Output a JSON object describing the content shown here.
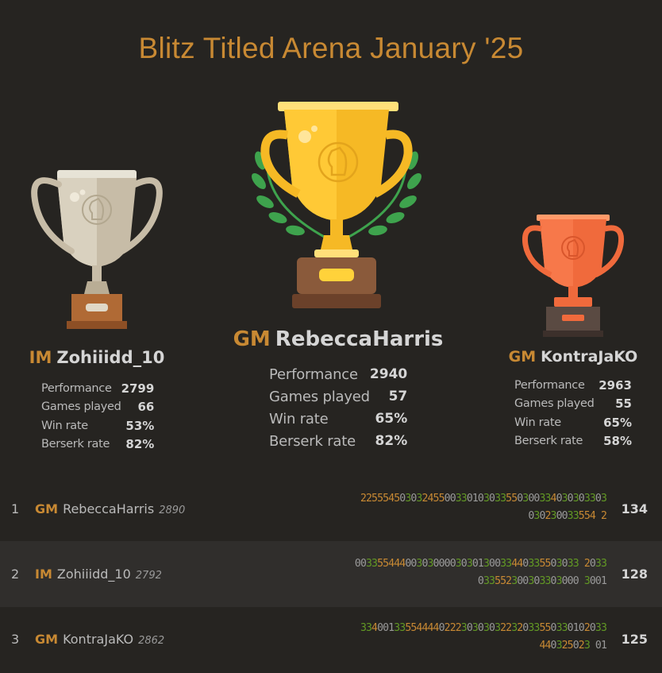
{
  "tournament": {
    "title": "Blitz Titled Arena January '25"
  },
  "podium": [
    {
      "place": 1,
      "title": "GM",
      "name": "RebeccaHarris",
      "stats": [
        {
          "label": "Performance",
          "value": "2940"
        },
        {
          "label": "Games played",
          "value": "57"
        },
        {
          "label": "Win rate",
          "value": "65%"
        },
        {
          "label": "Berserk rate",
          "value": "82%"
        }
      ]
    },
    {
      "place": 2,
      "title": "IM",
      "name": "Zohiiidd_10",
      "stats": [
        {
          "label": "Performance",
          "value": "2799"
        },
        {
          "label": "Games played",
          "value": "66"
        },
        {
          "label": "Win rate",
          "value": "53%"
        },
        {
          "label": "Berserk rate",
          "value": "82%"
        }
      ]
    },
    {
      "place": 3,
      "title": "GM",
      "name": "KontraJaKO",
      "stats": [
        {
          "label": "Performance",
          "value": "2963"
        },
        {
          "label": "Games played",
          "value": "55"
        },
        {
          "label": "Win rate",
          "value": "65%"
        },
        {
          "label": "Berserk rate",
          "value": "58%"
        }
      ]
    }
  ],
  "standings": [
    {
      "rank": "1",
      "title": "GM",
      "name": "RebeccaHarris",
      "rating": "2890",
      "sheet_line1": "22555450303245500330103033550300334030303303",
      "sheet_line2": "030230033554 2",
      "total": "134"
    },
    {
      "rank": "2",
      "title": "IM",
      "name": "Zohiiidd_10",
      "rating": "2792",
      "sheet_line1": "0033554440030300003030130033440335503033 2033",
      "sheet_line2": "033552300303303000 3001",
      "total": "128"
    },
    {
      "rank": "3",
      "title": "GM",
      "name": "KontraJaKO",
      "rating": "2862",
      "sheet_line1": "33400133554444022230303032232033550330102033",
      "sheet_line2": "440325023 01",
      "total": "125"
    }
  ],
  "colors": {
    "background": "#262421",
    "accent": "#c88933",
    "win_streak": "#629924",
    "text": "#bababa"
  }
}
